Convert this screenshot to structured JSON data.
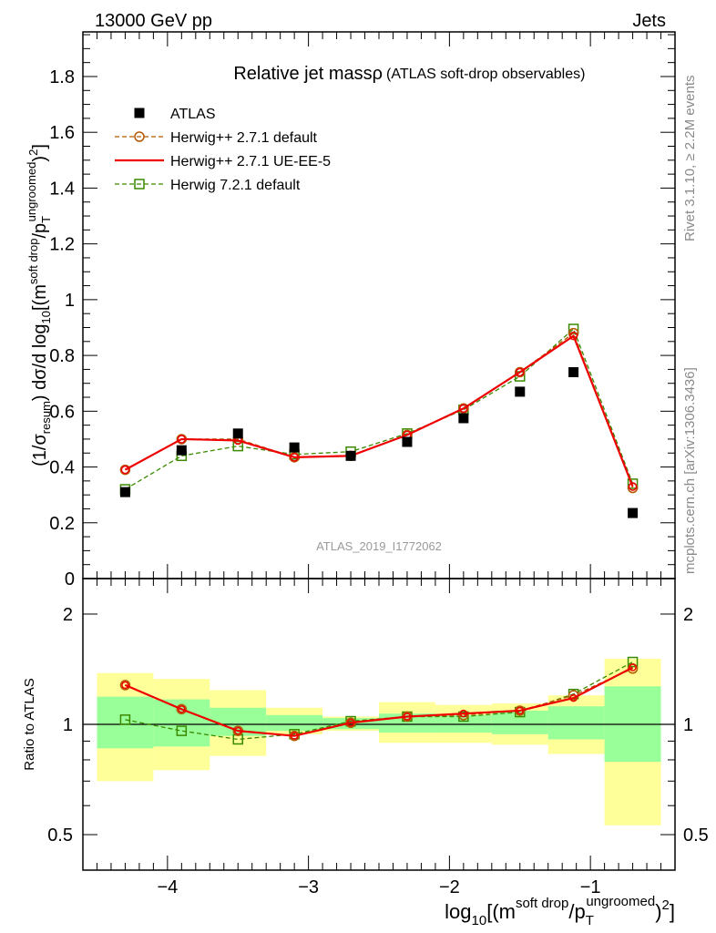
{
  "header": {
    "left": "13000 GeV pp",
    "right": "Jets"
  },
  "side_labels": {
    "rivet": "Rivet 3.1.10, ≥ 2.2M events",
    "mcplots": "mcplots.cern.ch [arXiv:1306.3436]"
  },
  "chart_data": {
    "type": "line",
    "title": "Relative jet massρ",
    "subtitle": "(ATLAS soft-drop observables)",
    "watermark": "ATLAS_2019_I1772062",
    "xlabel": "log10[(m^{soft drop}/p_T^{ungroomed})^2]",
    "ylabel": "(1/σresum) dσ/d log10[(m^{soft drop}/p_T^{ungroomed})^2]",
    "ratio_ylabel": "Ratio to ATLAS",
    "xlim": [
      -4.6,
      -0.4
    ],
    "ylim": [
      0,
      1.96
    ],
    "ratio_ylim": [
      0.4,
      2.5
    ],
    "x_ticks": [
      "−4",
      "−3",
      "−2",
      "−1"
    ],
    "y_ticks": [
      "0",
      "0.2",
      "0.4",
      "0.6",
      "0.8",
      "1",
      "1.2",
      "1.4",
      "1.6",
      "1.8"
    ],
    "ratio_ticks": [
      "0.5",
      "1",
      "2"
    ],
    "bin_edges": [
      -4.5,
      -4.1,
      -3.7,
      -3.3,
      -2.9,
      -2.5,
      -2.1,
      -1.7,
      -1.3,
      -0.9,
      -0.5
    ],
    "x": [
      -4.3,
      -3.9,
      -3.5,
      -3.1,
      -2.7,
      -2.3,
      -1.9,
      -1.5,
      -1.12,
      -0.7
    ],
    "series": [
      {
        "name": "ATLAS",
        "color": "#000000",
        "marker": "filled-square",
        "values": [
          0.31,
          0.46,
          0.52,
          0.47,
          0.44,
          0.49,
          0.575,
          0.67,
          0.74,
          0.235
        ]
      },
      {
        "name": "Herwig++ 2.7.1 default",
        "color": "#b35900",
        "marker": "open-circle",
        "dashed": true,
        "values": [
          0.39,
          0.5,
          0.5,
          0.435,
          0.44,
          0.515,
          0.61,
          0.74,
          0.88,
          0.325
        ],
        "ratio": [
          1.28,
          1.1,
          0.96,
          0.93,
          1.01,
          1.05,
          1.06,
          1.09,
          1.2,
          1.42
        ]
      },
      {
        "name": "Herwig++ 2.7.1 UE-EE-5",
        "color": "#ee0000",
        "marker": "line",
        "dashed": false,
        "values": [
          0.39,
          0.5,
          0.495,
          0.435,
          0.44,
          0.515,
          0.61,
          0.74,
          0.87,
          0.33
        ],
        "ratio": [
          1.28,
          1.1,
          0.96,
          0.93,
          1.01,
          1.05,
          1.07,
          1.09,
          1.18,
          1.43
        ]
      },
      {
        "name": "Herwig 7.2.1 default",
        "color": "#3a8a00",
        "marker": "open-square",
        "dashed": true,
        "values": [
          0.32,
          0.44,
          0.475,
          0.445,
          0.455,
          0.52,
          0.605,
          0.725,
          0.895,
          0.34
        ],
        "ratio": [
          1.03,
          0.96,
          0.91,
          0.94,
          1.02,
          1.05,
          1.05,
          1.08,
          1.21,
          1.48
        ]
      }
    ],
    "bands": {
      "inner_color": "#99ff99",
      "outer_color": "#ffff99",
      "inner": [
        [
          0.86,
          1.19
        ],
        [
          0.87,
          1.17
        ],
        [
          0.93,
          1.11
        ],
        [
          0.96,
          1.06
        ],
        [
          0.97,
          1.04
        ],
        [
          0.95,
          1.07
        ],
        [
          0.95,
          1.06
        ],
        [
          0.94,
          1.09
        ],
        [
          0.91,
          1.12
        ],
        [
          0.79,
          1.27
        ]
      ],
      "outer": [
        [
          0.7,
          1.38
        ],
        [
          0.75,
          1.33
        ],
        [
          0.82,
          1.24
        ],
        [
          0.94,
          1.11
        ],
        [
          0.96,
          1.05
        ],
        [
          0.89,
          1.15
        ],
        [
          0.89,
          1.13
        ],
        [
          0.88,
          1.14
        ],
        [
          0.83,
          1.2
        ],
        [
          0.53,
          1.51
        ]
      ]
    }
  }
}
